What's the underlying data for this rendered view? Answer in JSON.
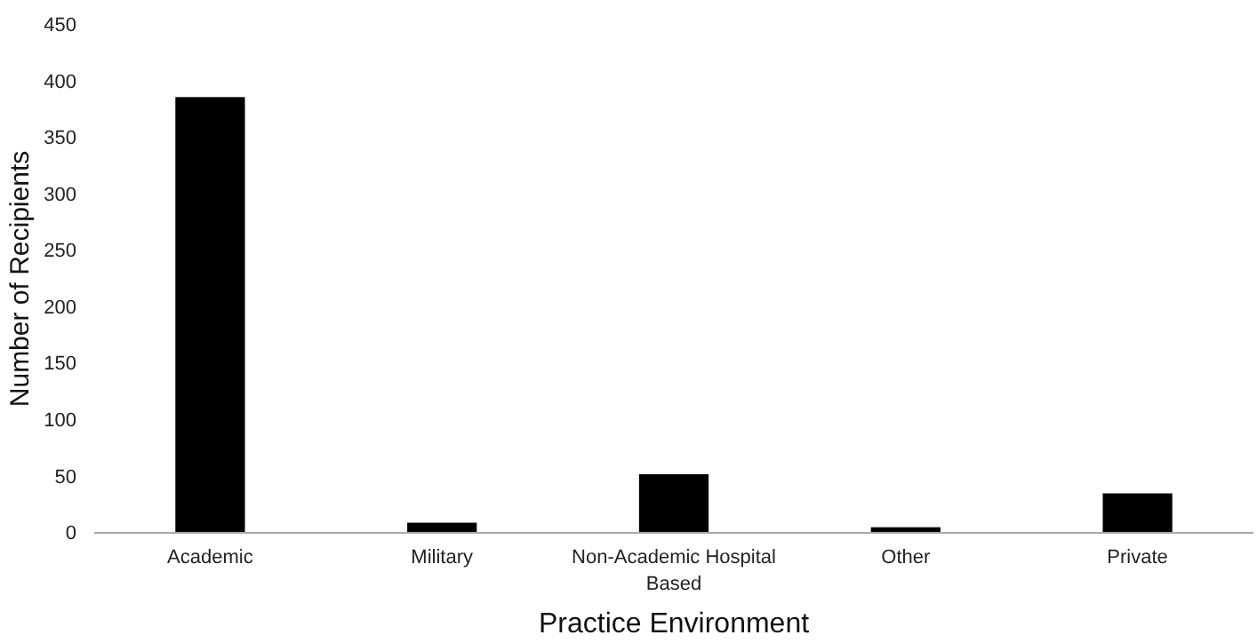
{
  "chart_data": {
    "type": "bar",
    "xlabel": "Practice Environment",
    "ylabel": "Number of Recipients",
    "categories": [
      "Academic",
      "Military",
      "Non-Academic Hospital Based",
      "Other",
      "Private"
    ],
    "values": [
      386,
      9,
      52,
      5,
      35
    ],
    "color": "#000000",
    "ylim": [
      0,
      450
    ],
    "yticks": [
      0,
      50,
      100,
      150,
      200,
      250,
      300,
      350,
      400,
      450
    ],
    "grid": false
  }
}
